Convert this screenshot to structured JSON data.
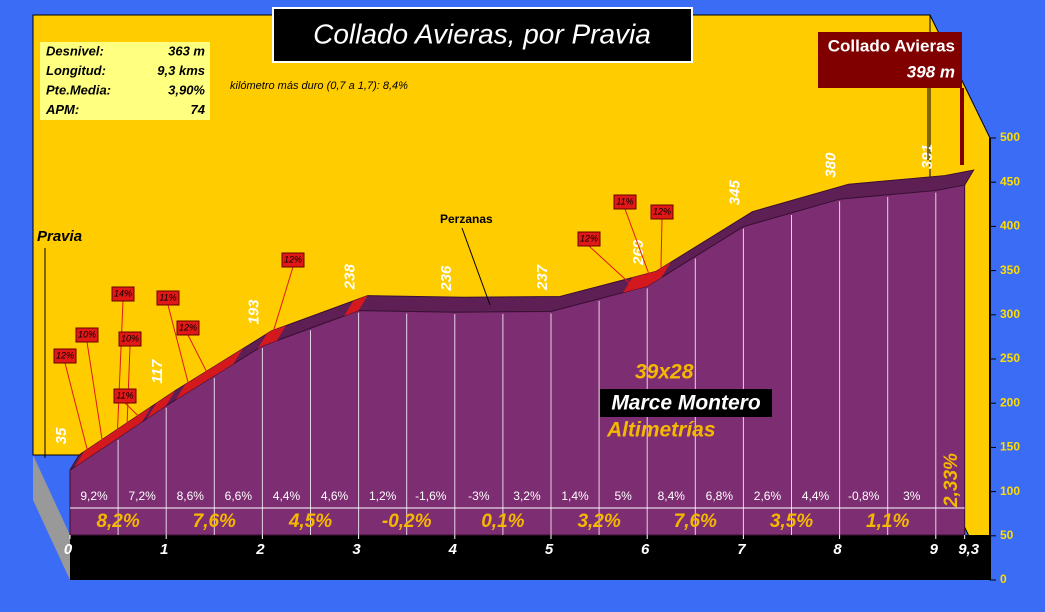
{
  "title": "Collado  Avieras,  por  Pravia",
  "stats": [
    {
      "label": "Desnivel:",
      "value": "363 m"
    },
    {
      "label": "Longitud:",
      "value": "9,3 kms"
    },
    {
      "label": "Pte.Media:",
      "value": "3,90%"
    },
    {
      "label": "APM:",
      "value": "74"
    }
  ],
  "hardest_km": "kilómetro más duro (0,7 a 1,7):  8,4%",
  "summit": {
    "name": "Collado Avieras",
    "altitude": "398 m"
  },
  "places": {
    "start": "Pravia",
    "mid": "Perzanas"
  },
  "credits": [
    "39x28",
    "Marce Montero",
    "Altimetrías"
  ],
  "chart_data": {
    "type": "area",
    "x": [
      0,
      1,
      2,
      3,
      4,
      5,
      6,
      7,
      8,
      9,
      9.3
    ],
    "values": [
      35,
      117,
      193,
      238,
      236,
      237,
      269,
      345,
      380,
      391,
      398
    ],
    "color": "#7d2d72",
    "xlim": [
      0,
      9.3
    ],
    "xticks": [
      0,
      1,
      2,
      3,
      4,
      5,
      6,
      7,
      8,
      9,
      {
        "value": 9.3,
        "label": "9,3"
      }
    ],
    "ylim": [
      0,
      500
    ],
    "yticks": [
      0,
      50,
      100,
      150,
      200,
      250,
      300,
      350,
      400,
      450,
      500
    ],
    "km_gradients": [
      "8,2%",
      "7,6%",
      "4,5%",
      "-0,2%",
      "0,1%",
      "3,2%",
      "7,6%",
      "3,5%",
      "1,1%",
      "2,33%"
    ],
    "half_km_gradients": [
      "9,2%",
      "7,2%",
      "8,6%",
      "6,6%",
      "4,4%",
      "4,6%",
      "1,2%",
      "-1,6%",
      "-3%",
      "3,2%",
      "1,4%",
      "5%",
      "8,4%",
      "6,8%",
      "2,6%",
      "4,4%",
      "-0,8%",
      "3%"
    ],
    "steep_badges": [
      "12%",
      "10%",
      "14%",
      "10%",
      "11%",
      "11%",
      "12%",
      "12%",
      "12%",
      "11%",
      "12%"
    ]
  }
}
